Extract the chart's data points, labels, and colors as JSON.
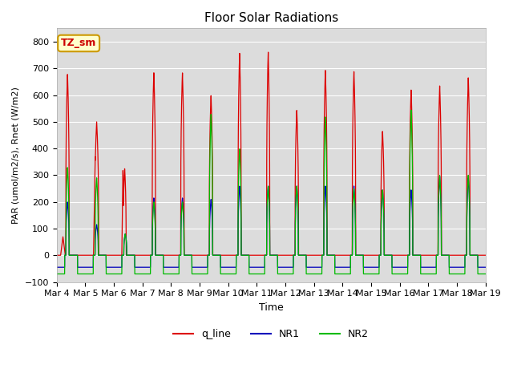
{
  "title": "Floor Solar Radiations",
  "xlabel": "Time",
  "ylabel": "PAR (umol/m2/s), Rnet (W/m2)",
  "ylim": [
    -100,
    850
  ],
  "yticks": [
    -100,
    0,
    100,
    200,
    300,
    400,
    500,
    600,
    700,
    800
  ],
  "background_color": "#dcdcdc",
  "legend_labels": [
    "q_line",
    "NR1",
    "NR2"
  ],
  "legend_colors": [
    "#dd0000",
    "#0000bb",
    "#00bb00"
  ],
  "annotation_text": "TZ_sm",
  "annotation_bg": "#ffffcc",
  "annotation_border": "#cc9900",
  "x_tick_labels": [
    "Mar 4",
    "Mar 5",
    "Mar 6",
    "Mar 7",
    "Mar 8",
    "Mar 9",
    "Mar 10",
    "Mar 11",
    "Mar 12",
    "Mar 13",
    "Mar 14",
    "Mar 15",
    "Mar 16",
    "Mar 17",
    "Mar 18",
    "Mar 19"
  ],
  "n_days": 15,
  "points_per_day": 480
}
